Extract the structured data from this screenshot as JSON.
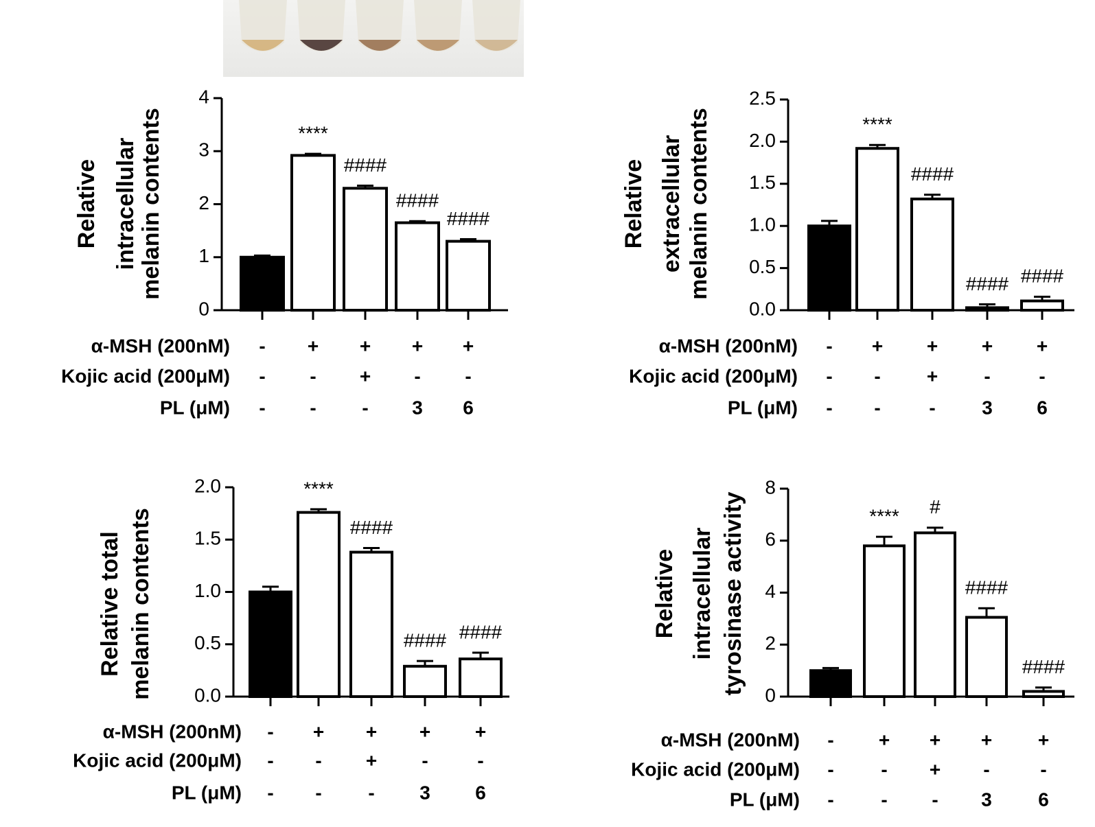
{
  "chart_data": [
    {
      "type": "bar",
      "ylabel": [
        "Relative",
        "intracellular",
        "melanin contents"
      ],
      "values": [
        1.0,
        2.92,
        2.3,
        1.65,
        1.3
      ],
      "errors": [
        0.03,
        0.03,
        0.05,
        0.03,
        0.04
      ],
      "colors": [
        "#000000",
        "#ffffff",
        "#ffffff",
        "#ffffff",
        "#ffffff"
      ],
      "annotations": [
        null,
        "****",
        "####",
        "####",
        "####"
      ],
      "ylim": [
        0,
        4
      ],
      "yticks": [
        0,
        1,
        2,
        3,
        4
      ],
      "treatments": [
        {
          "label": "α-MSH (200nM)",
          "levels": [
            "-",
            "+",
            "+",
            "+",
            "+"
          ]
        },
        {
          "label": "Kojic acid (200μM)",
          "levels": [
            "-",
            "-",
            "+",
            "-",
            "-"
          ]
        },
        {
          "label": "PL (μM)",
          "levels": [
            "-",
            "-",
            "-",
            "3",
            "6"
          ]
        }
      ]
    },
    {
      "type": "bar",
      "ylabel": [
        "Relative",
        "extracellular",
        "melanin contents"
      ],
      "values": [
        1.0,
        1.92,
        1.32,
        0.03,
        0.11
      ],
      "errors": [
        0.06,
        0.04,
        0.05,
        0.04,
        0.05
      ],
      "colors": [
        "#000000",
        "#ffffff",
        "#ffffff",
        "#ffffff",
        "#ffffff"
      ],
      "annotations": [
        null,
        "****",
        "####",
        "####",
        "####"
      ],
      "ylim": [
        0,
        2.5
      ],
      "yticks": [
        {
          "value": 0,
          "label": "0.0"
        },
        0.5,
        {
          "value": 1,
          "label": "1.0"
        },
        1.5,
        {
          "value": 2,
          "label": "2.0"
        },
        2.5
      ],
      "treatments": [
        {
          "label": "α-MSH (200nM)",
          "levels": [
            "-",
            "+",
            "+",
            "+",
            "+"
          ]
        },
        {
          "label": "Kojic acid (200μM)",
          "levels": [
            "-",
            "-",
            "+",
            "-",
            "-"
          ]
        },
        {
          "label": "PL (μM)",
          "levels": [
            "-",
            "-",
            "-",
            "3",
            "6"
          ]
        }
      ]
    },
    {
      "type": "bar",
      "ylabel": [
        "Relative total",
        "melanin contents"
      ],
      "values": [
        1.0,
        1.76,
        1.38,
        0.29,
        0.36
      ],
      "errors": [
        0.05,
        0.03,
        0.04,
        0.05,
        0.06
      ],
      "colors": [
        "#000000",
        "#ffffff",
        "#ffffff",
        "#ffffff",
        "#ffffff"
      ],
      "annotations": [
        null,
        "****",
        "####",
        "####",
        "####"
      ],
      "ylim": [
        0,
        2
      ],
      "yticks": [
        {
          "value": 0,
          "label": "0.0"
        },
        0.5,
        {
          "value": 1,
          "label": "1.0"
        },
        1.5,
        {
          "value": 2,
          "label": "2.0"
        }
      ],
      "treatments": [
        {
          "label": "α-MSH (200nM)",
          "levels": [
            "-",
            "+",
            "+",
            "+",
            "+"
          ]
        },
        {
          "label": "Kojic acid (200μM)",
          "levels": [
            "-",
            "-",
            "+",
            "-",
            "-"
          ]
        },
        {
          "label": "PL (μM)",
          "levels": [
            "-",
            "-",
            "-",
            "3",
            "6"
          ]
        }
      ]
    },
    {
      "type": "bar",
      "ylabel": [
        "Relative",
        "intracellular",
        "tyrosinase activity"
      ],
      "values": [
        1.0,
        5.8,
        6.3,
        3.05,
        0.2
      ],
      "errors": [
        0.1,
        0.35,
        0.2,
        0.35,
        0.15
      ],
      "colors": [
        "#000000",
        "#ffffff",
        "#ffffff",
        "#ffffff",
        "#ffffff"
      ],
      "annotations": [
        null,
        "****",
        "#",
        "####",
        "####"
      ],
      "ylim": [
        0,
        8
      ],
      "yticks": [
        0,
        2,
        4,
        6,
        8
      ],
      "treatments": [
        {
          "label": "α-MSH (200nM)",
          "levels": [
            "-",
            "+",
            "+",
            "+",
            "+"
          ]
        },
        {
          "label": "Kojic acid (200μM)",
          "levels": [
            "-",
            "-",
            "+",
            "-",
            "-"
          ]
        },
        {
          "label": "PL (μM)",
          "levels": [
            "-",
            "-",
            "-",
            "3",
            "6"
          ]
        }
      ]
    }
  ]
}
